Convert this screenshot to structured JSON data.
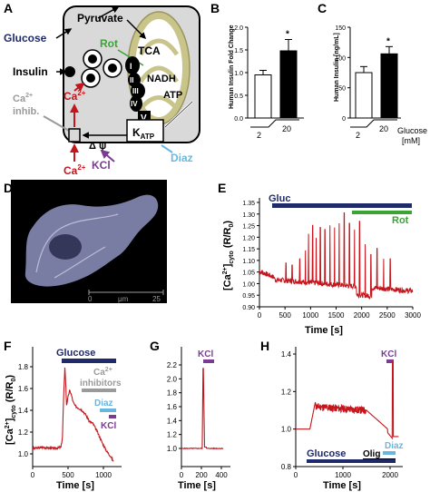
{
  "panels": {
    "A": "A",
    "B": "B",
    "C": "C",
    "D": "D",
    "E": "E",
    "F": "F",
    "G": "G",
    "H": "H"
  },
  "colors": {
    "red": "#c4161c",
    "navy": "#1f2a6b",
    "green": "#3aa435",
    "lightblue": "#6bb6e0",
    "purple": "#7a3c93",
    "gray": "#9a9a9a",
    "olive": "#c9c58a"
  },
  "panel_a": {
    "pyruvate": "Pyruvate",
    "glucose": "Glucose",
    "insulin": "Insulin",
    "rot": "Rot",
    "tca": "TCA",
    "nadh": "NADH",
    "atp": "ATP",
    "complexes": [
      "I",
      "II",
      "III",
      "IV",
      "V"
    ],
    "ca_inhib_1": "Ca",
    "ca_inhib_sup": "2+",
    "ca_inhib_2": "inhib.",
    "ca_in": "Ca",
    "ca_in_sup": "2+",
    "ca_out": "Ca",
    "ca_out_sup": "2+",
    "katp": "K",
    "katp_sub": "ATP",
    "delta_psi": "Δ ψ",
    "kcl": "KCl",
    "diaz": "Diaz"
  },
  "panel_b": {
    "ylabel": "Human Insulin Fold Change",
    "yticks": [
      "0.0",
      "0.5",
      "1.0",
      "1.5",
      "2.0"
    ],
    "star": "*",
    "xlabels": [
      "2",
      "20"
    ],
    "chart_data": {
      "type": "bar",
      "categories": [
        "2",
        "20"
      ],
      "values": [
        0.95,
        1.48
      ],
      "errors": [
        0.1,
        0.25
      ],
      "ylim": [
        0,
        2.0
      ],
      "ylabel": "Human Insulin Fold Change",
      "colors": [
        "#ffffff",
        "#000000"
      ]
    }
  },
  "panel_c": {
    "ylabel": "Human Insulin [ng/mL]",
    "yticks": [
      "0",
      "50",
      "100",
      "150"
    ],
    "star": "*",
    "xlabels": [
      "2",
      "20"
    ],
    "glucose_label_1": "Glucose",
    "glucose_label_2": "[mM]",
    "chart_data": {
      "type": "bar",
      "categories": [
        "2",
        "20"
      ],
      "values": [
        75,
        106
      ],
      "errors": [
        10,
        12
      ],
      "ylim": [
        0,
        150
      ],
      "ylabel": "Human Insulin [ng/mL]",
      "colors": [
        "#ffffff",
        "#000000"
      ]
    }
  },
  "panel_d": {
    "scale_ticks": [
      "0",
      "μm",
      "25"
    ]
  },
  "panel_e": {
    "gluc": "Gluc",
    "rot": "Rot",
    "ylabel_main": "[Ca",
    "ylabel_sup": "2+",
    "ylabel_rest": "]",
    "ylabel_sub": "cyto",
    "ylabel_tail": " (R/R",
    "ylabel_sub0": "0",
    "ylabel_end": ")",
    "xlabel": "Time [s]",
    "yticks": [
      "0.90",
      "0.95",
      "1.00",
      "1.05",
      "1.10",
      "1.15",
      "1.20",
      "1.25",
      "1.30",
      "1.35"
    ],
    "xticks": [
      "0",
      "500",
      "1000",
      "1500",
      "2000",
      "2500",
      "3000"
    ],
    "chart_data": {
      "type": "line",
      "xlim": [
        0,
        3000
      ],
      "ylim": [
        0.85,
        1.35
      ],
      "xlabel": "Time [s]",
      "bars": [
        {
          "name": "Gluc",
          "x": [
            300,
            3000
          ]
        },
        {
          "name": "Rot",
          "x": [
            1800,
            3000
          ]
        }
      ]
    }
  },
  "panel_f": {
    "glucose": "Glucose",
    "ca_1": "Ca",
    "ca_sup": "2+",
    "ca_2": "inhibitors",
    "diaz": "Diaz",
    "kcl": "KCl",
    "ylabel_main": "[Ca",
    "ylabel_sup": "2+",
    "ylabel_rest": "]",
    "ylabel_sub": "cyto",
    "ylabel_tail": " (R/R",
    "ylabel_sub0": "0",
    "ylabel_end": ")",
    "xlabel": "Time [s]",
    "yticks": [
      "1.0",
      "1.2",
      "1.4",
      "1.6",
      "1.8"
    ],
    "xticks": [
      "0",
      "500",
      "1000"
    ],
    "chart_data": {
      "type": "line",
      "xlim": [
        0,
        1250
      ],
      "ylim": [
        0.9,
        1.9
      ],
      "xlabel": "Time [s]",
      "bars": [
        {
          "name": "Glucose",
          "x": [
            420,
            1180
          ]
        },
        {
          "name": "Ca2+ inhibitors",
          "x": [
            720,
            1180
          ]
        },
        {
          "name": "Diaz",
          "x": [
            980,
            1180
          ]
        },
        {
          "name": "KCl",
          "x": [
            1060,
            1180
          ]
        }
      ]
    }
  },
  "panel_g": {
    "kcl": "KCl",
    "xlabel": "Time [s]",
    "yticks": [
      "1.0",
      "1.2",
      "1.4",
      "1.6",
      "1.8",
      "2.0",
      "2.2"
    ],
    "xticks": [
      "0",
      "200",
      "400"
    ],
    "chart_data": {
      "type": "line",
      "xlim": [
        0,
        450
      ],
      "ylim": [
        0.9,
        2.3
      ],
      "xlabel": "Time [s]",
      "bars": [
        {
          "name": "KCl",
          "x": [
            200,
            260
          ]
        }
      ]
    }
  },
  "panel_h": {
    "kcl": "KCl",
    "glucose": "Glucose",
    "olig": "Olig",
    "diaz": "Diaz",
    "xlabel": "Time [s]",
    "yticks": [
      "0.8",
      "1.0",
      "1.2",
      "1.4"
    ],
    "xticks": [
      "0",
      "1000",
      "2000"
    ],
    "chart_data": {
      "type": "line",
      "xlim": [
        0,
        2200
      ],
      "ylim": [
        0.8,
        1.45
      ],
      "xlabel": "Time [s]",
      "bars": [
        {
          "name": "Glucose",
          "x": [
            300,
            2150
          ]
        },
        {
          "name": "Olig",
          "x": [
            1500,
            2150
          ]
        },
        {
          "name": "Diaz",
          "x": [
            1950,
            2150
          ]
        },
        {
          "name": "KCl",
          "x": [
            2050,
            2150
          ]
        }
      ]
    }
  }
}
